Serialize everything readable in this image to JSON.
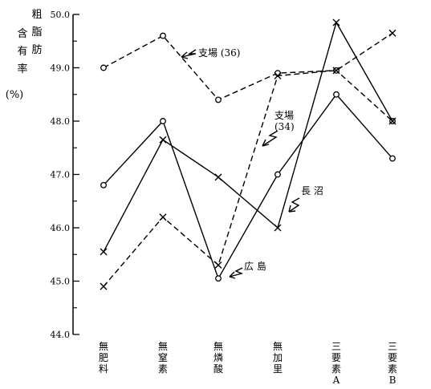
{
  "chart_data": {
    "type": "line",
    "title": "",
    "ylabel_columns": [
      "粗脂肪",
      "含有率",
      "(%)"
    ],
    "xlabel": "",
    "categories": [
      [
        "無",
        "肥",
        "料"
      ],
      [
        "無",
        "窒",
        "素"
      ],
      [
        "無",
        "燐",
        "酸"
      ],
      [
        "無",
        "加",
        "里"
      ],
      [
        "三",
        "要",
        "素",
        "A"
      ],
      [
        "三",
        "要",
        "素",
        "B"
      ]
    ],
    "ylim": [
      44.0,
      50.0
    ],
    "yticks": [
      "44.0",
      "45.0",
      "46.0",
      "47.0",
      "48.0",
      "49.0",
      "50.0"
    ],
    "grid": false,
    "legend": "none (series labelled by annotations)",
    "series": [
      {
        "name": "支場 (36)",
        "marker": "circle",
        "line": "dashed",
        "values": [
          49.0,
          49.6,
          48.4,
          48.9,
          48.95,
          48.0
        ]
      },
      {
        "name": "支場 (34)",
        "marker": "cross",
        "line": "dashed",
        "values": [
          44.9,
          46.2,
          45.3,
          48.85,
          48.95,
          49.65
        ]
      },
      {
        "name": "長 沼",
        "marker": "cross",
        "line": "solid",
        "values": [
          45.55,
          47.65,
          46.95,
          46.0,
          49.85,
          48.0
        ]
      },
      {
        "name": "広 島",
        "marker": "circle",
        "line": "solid",
        "values": [
          46.8,
          48.0,
          45.05,
          47.0,
          48.5,
          47.3
        ]
      }
    ],
    "annotations": [
      "支場 (36)",
      "支場\n(34)",
      "長 沼",
      "広 島"
    ]
  },
  "annotations": {
    "a36": "支場 (36)",
    "a34_line1": "支場",
    "a34_line2": "(34)",
    "naga": "長 沼",
    "hiro": "広 島"
  }
}
